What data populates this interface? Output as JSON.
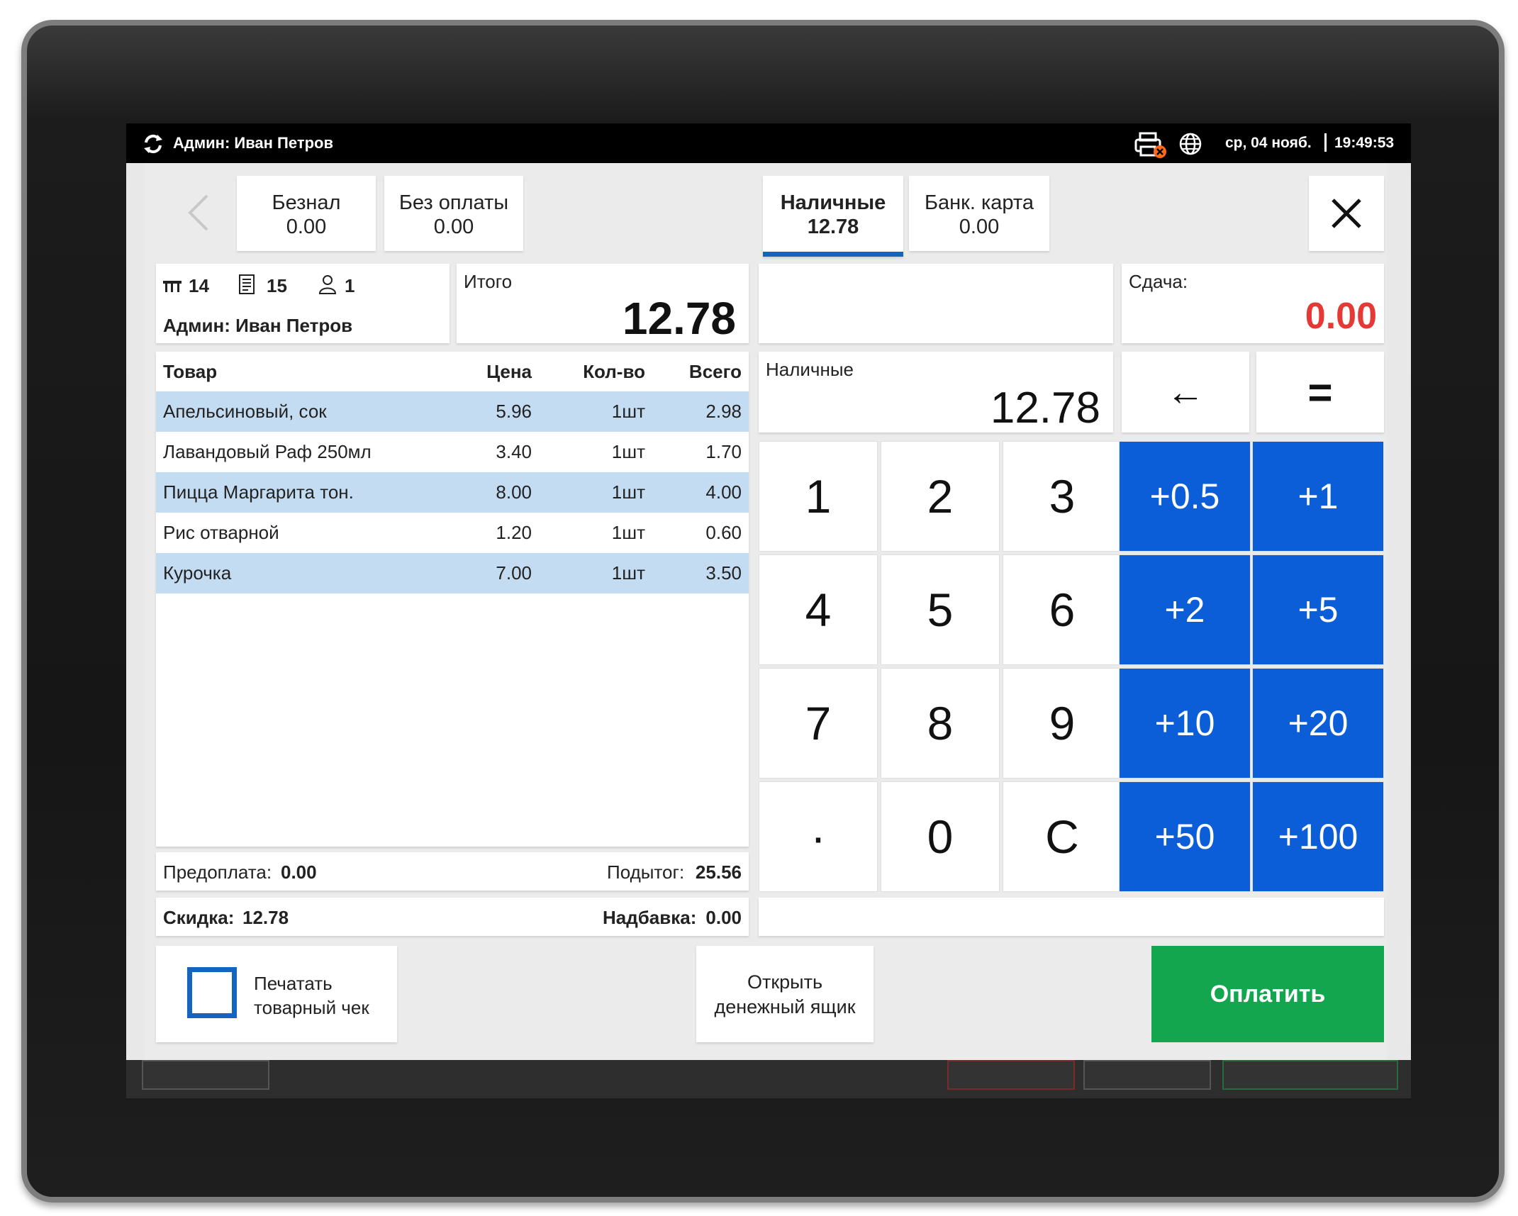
{
  "status_bar": {
    "user": "Админ: Иван Петров",
    "date": "ср, 04 нояб.",
    "time": "19:49:53",
    "icons": [
      "sync-icon",
      "printer-error-icon",
      "globe-icon"
    ]
  },
  "tabs_left": [
    {
      "label": "Безнал",
      "amount": "0.00"
    },
    {
      "label": "Без оплаты",
      "amount": "0.00"
    }
  ],
  "tabs_right": [
    {
      "label": "Наличные",
      "amount": "12.78",
      "active": true
    },
    {
      "label": "Банк. карта",
      "amount": "0.00"
    }
  ],
  "order_info": {
    "table": "14",
    "check": "15",
    "guests": "1",
    "waiter": "Админ: Иван Петров"
  },
  "total": {
    "label": "Итого",
    "value": "12.78"
  },
  "change": {
    "label": "Сдача:",
    "value": "0.00"
  },
  "cash_input": {
    "label": "Наличные",
    "value": "12.78"
  },
  "items_table": {
    "headers": [
      "Товар",
      "Цена",
      "Кол-во",
      "Всего"
    ],
    "rows": [
      [
        "Апельсиновый, сок",
        "5.96",
        "1шт",
        "2.98"
      ],
      [
        "Лавандовый Раф 250мл",
        "3.40",
        "1шт",
        "1.70"
      ],
      [
        "Пицца Маргарита тон.",
        "8.00",
        "1шт",
        "4.00"
      ],
      [
        "Рис отварной",
        "1.20",
        "1шт",
        "0.60"
      ],
      [
        "Курочка",
        "7.00",
        "1шт",
        "3.50"
      ]
    ]
  },
  "summary": {
    "prepay_label": "Предоплата:",
    "prepay_value": "0.00",
    "subtotal_label": "Подытог:",
    "subtotal_value": "25.56",
    "discount_label": "Скидка:",
    "discount_value": "12.78",
    "markup_label": "Надбавка:",
    "markup_value": "0.00"
  },
  "keypad": {
    "digits": [
      "1",
      "2",
      "3",
      "4",
      "5",
      "6",
      "7",
      "8",
      "9",
      "·",
      "0",
      "C"
    ],
    "quick": [
      "+0.5",
      "+1",
      "+2",
      "+5",
      "+10",
      "+20",
      "+50",
      "+100"
    ],
    "backspace": "←",
    "equals": "="
  },
  "bottom": {
    "print_receipt_line1": "Печатать",
    "print_receipt_line2": "товарный чек",
    "open_drawer_line1": "Открыть",
    "open_drawer_line2": "денежный ящик",
    "pay": "Оплатить"
  },
  "colors": {
    "accent_blue": "#0b5ed7",
    "tab_underline": "#1565c0",
    "pay_green": "#13a64e",
    "change_red": "#e53935",
    "row_highlight": "#c4dcf2"
  }
}
